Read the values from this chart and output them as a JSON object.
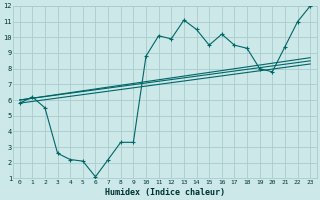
{
  "background_color": "#cce8e8",
  "grid_color": "#aacccc",
  "line_color": "#006666",
  "xlabel": "Humidex (Indice chaleur)",
  "xlim": [
    -0.5,
    23.5
  ],
  "ylim": [
    1,
    12
  ],
  "xticks": [
    0,
    1,
    2,
    3,
    4,
    5,
    6,
    7,
    8,
    9,
    10,
    11,
    12,
    13,
    14,
    15,
    16,
    17,
    18,
    19,
    20,
    21,
    22,
    23
  ],
  "yticks": [
    1,
    2,
    3,
    4,
    5,
    6,
    7,
    8,
    9,
    10,
    11,
    12
  ],
  "line1": {
    "x": [
      0,
      23
    ],
    "y": [
      6.0,
      8.5
    ]
  },
  "line2": {
    "x": [
      0,
      23
    ],
    "y": [
      6.0,
      8.7
    ]
  },
  "line3": {
    "x": [
      0,
      23
    ],
    "y": [
      5.8,
      8.3
    ]
  },
  "line4": {
    "x": [
      0,
      1,
      2,
      3,
      4,
      5,
      6,
      7,
      8,
      9,
      10,
      11,
      12,
      13,
      14,
      15,
      16,
      17,
      18,
      19,
      20,
      21,
      22,
      23
    ],
    "y": [
      5.8,
      6.2,
      5.5,
      2.6,
      2.2,
      2.1,
      1.1,
      2.2,
      3.3,
      3.3,
      8.8,
      10.1,
      9.9,
      11.1,
      10.5,
      9.5,
      10.2,
      9.5,
      9.3,
      8.0,
      7.8,
      9.4,
      11.0,
      12.0
    ]
  }
}
